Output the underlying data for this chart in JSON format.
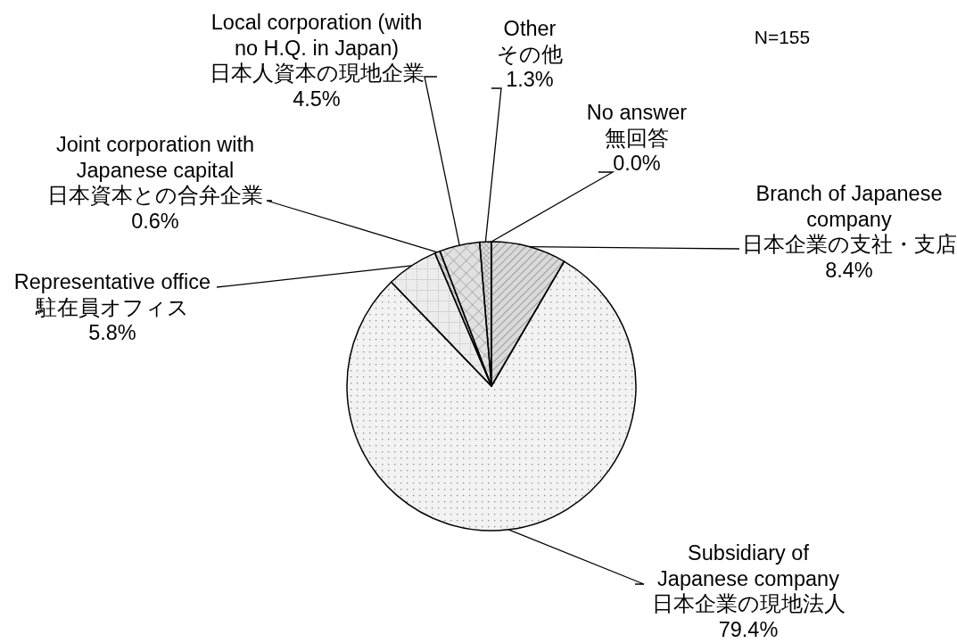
{
  "chart_data": {
    "type": "pie",
    "categories": [
      "Branch of Japanese\ncompany\n日本企業の支社・支店",
      "Subsidiary of\nJapanese company\n日本企業の現地法人",
      "Representative office\n駐在員オフィス",
      "Joint corporation with\nJapanese capital\n日本資本との合弁企業",
      "Local corporation (with\nno H.Q. in Japan)\n日本人資本の現地企業",
      "Other\nその他",
      "No answer\n無回答"
    ],
    "values": [
      8.4,
      79.4,
      5.8,
      0.6,
      4.5,
      1.3,
      0.0
    ],
    "value_labels": [
      "8.4%",
      "79.4%",
      "5.8%",
      "0.6%",
      "4.5%",
      "1.3%",
      "0.0%"
    ],
    "colors": [
      "#d9d9d9",
      "#f2f2f2",
      "#ececec",
      "#d9d9d9",
      "#e0e0e0",
      "#dcdcdc",
      "#f2f2f2"
    ],
    "annotations": [
      "N=155"
    ]
  }
}
